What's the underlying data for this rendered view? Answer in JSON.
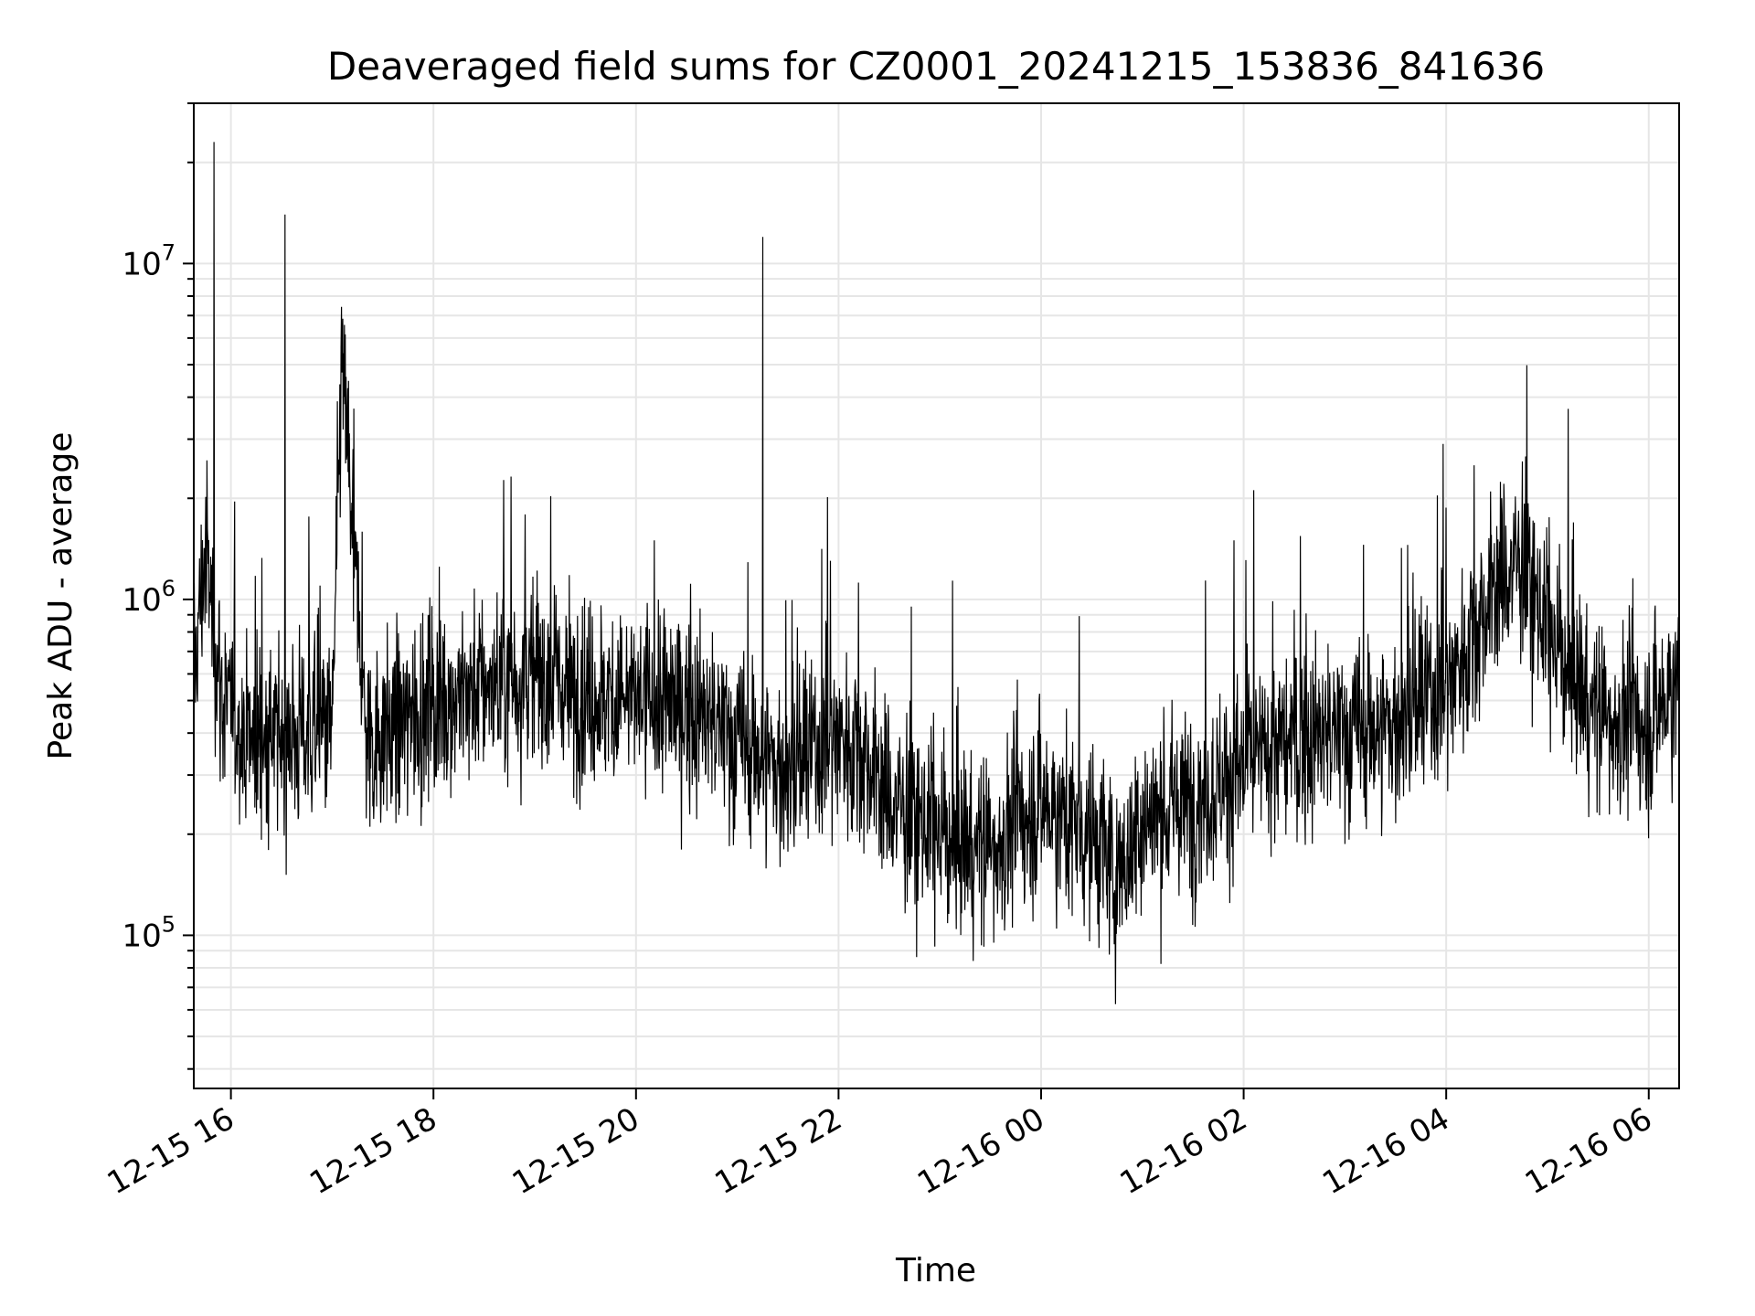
{
  "chart_data": {
    "type": "line",
    "title": "Deaveraged field sums for CZ0001_20241215_153836_841636",
    "xlabel": "Time",
    "ylabel": "Peak ADU - average",
    "xlim": [
      "2024-12-15 15:38",
      "2024-12-16 06:18"
    ],
    "ylim": [
      35000,
      30000000
    ],
    "yscale": "log",
    "grid": true,
    "line_color": "#000000",
    "grid_color": "#e6e6e6",
    "x_ticks": [
      {
        "t": "2024-12-15 16:00",
        "label": "12-15 16"
      },
      {
        "t": "2024-12-15 18:00",
        "label": "12-15 18"
      },
      {
        "t": "2024-12-15 20:00",
        "label": "12-15 20"
      },
      {
        "t": "2024-12-15 22:00",
        "label": "12-15 22"
      },
      {
        "t": "2024-12-16 00:00",
        "label": "12-16 00"
      },
      {
        "t": "2024-12-16 02:00",
        "label": "12-16 02"
      },
      {
        "t": "2024-12-16 04:00",
        "label": "12-16 04"
      },
      {
        "t": "2024-12-16 06:00",
        "label": "12-16 06"
      }
    ],
    "y_ticks": [
      {
        "value": 100000,
        "base": "10",
        "exp": "5"
      },
      {
        "value": 1000000,
        "base": "10",
        "exp": "6"
      },
      {
        "value": 10000000,
        "base": "10",
        "exp": "7"
      }
    ],
    "series": [
      {
        "points": [
          [
            "2024-12-15 15:38",
            600000
          ],
          [
            "2024-12-15 15:45",
            1400000
          ],
          [
            "2024-12-15 15:50",
            23000000
          ],
          [
            "2024-12-15 15:55",
            500000
          ],
          [
            "2024-12-15 16:05",
            420000
          ],
          [
            "2024-12-15 16:15",
            380000
          ],
          [
            "2024-12-15 16:32",
            14000000
          ],
          [
            "2024-12-15 16:45",
            400000
          ],
          [
            "2024-12-15 17:00",
            420000
          ],
          [
            "2024-12-15 17:06",
            5200000
          ],
          [
            "2024-12-15 17:20",
            380000
          ],
          [
            "2024-12-15 17:40",
            420000
          ],
          [
            "2024-12-15 18:00",
            500000
          ],
          [
            "2024-12-15 18:30",
            550000
          ],
          [
            "2024-12-15 19:00",
            600000
          ],
          [
            "2024-12-15 19:30",
            520000
          ],
          [
            "2024-12-15 20:00",
            500000
          ],
          [
            "2024-12-15 20:30",
            480000
          ],
          [
            "2024-12-15 21:00",
            380000
          ],
          [
            "2024-12-15 21:15",
            12000000
          ],
          [
            "2024-12-15 21:30",
            300000
          ],
          [
            "2024-12-15 22:00",
            400000
          ],
          [
            "2024-12-15 22:15",
            350000
          ],
          [
            "2024-12-15 22:30",
            250000
          ],
          [
            "2024-12-15 23:00",
            200000
          ],
          [
            "2024-12-15 23:30",
            180000
          ],
          [
            "2024-12-16 00:00",
            250000
          ],
          [
            "2024-12-16 00:30",
            200000
          ],
          [
            "2024-12-16 00:45",
            150000
          ],
          [
            "2024-12-16 01:00",
            220000
          ],
          [
            "2024-12-16 01:30",
            250000
          ],
          [
            "2024-12-16 02:00",
            320000
          ],
          [
            "2024-12-16 02:30",
            380000
          ],
          [
            "2024-12-16 03:00",
            400000
          ],
          [
            "2024-12-16 03:30",
            420000
          ],
          [
            "2024-12-16 04:00",
            550000
          ],
          [
            "2024-12-16 04:30",
            1100000
          ],
          [
            "2024-12-16 04:45",
            1300000
          ],
          [
            "2024-12-16 05:00",
            800000
          ],
          [
            "2024-12-16 05:30",
            450000
          ],
          [
            "2024-12-16 06:00",
            420000
          ],
          [
            "2024-12-16 06:18",
            600000
          ]
        ]
      }
    ]
  }
}
